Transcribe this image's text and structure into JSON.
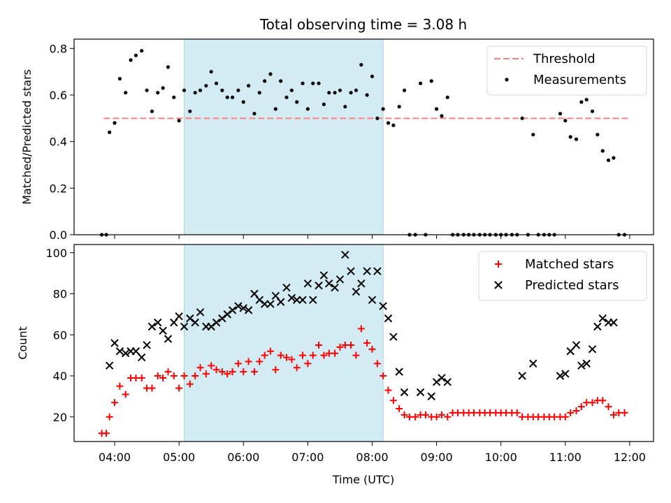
{
  "chart_data": {
    "type": "scatter",
    "title": "Total observing time = 3.08 h",
    "xlabel": "Time (UTC)",
    "x_ticks": [
      "04:00",
      "05:00",
      "06:00",
      "07:00",
      "08:00",
      "09:00",
      "10:00",
      "11:00",
      "12:00"
    ],
    "x_range_hours": [
      3.37,
      12.37
    ],
    "highlight_interval": [
      5.08,
      8.17
    ],
    "colors": {
      "threshold": "#ff7f7f",
      "measurements": "#000000",
      "matched": "#ff0000",
      "predicted": "#000000",
      "highlight": "#d3ebf2"
    },
    "panels": [
      {
        "ylabel": "Matched/Predicted stars",
        "ylim": [
          0,
          0.84
        ],
        "y_ticks": [
          "0.0",
          "0.2",
          "0.4",
          "0.6",
          "0.8"
        ],
        "threshold": 0.5,
        "threshold_x_range": [
          3.83,
          12.0
        ],
        "legend": [
          "Threshold",
          "Measurements"
        ],
        "legend_position": "top-right",
        "measurements": [
          [
            3.8,
            0
          ],
          [
            3.87,
            0
          ],
          [
            3.92,
            0.44
          ],
          [
            4.0,
            0.48
          ],
          [
            4.08,
            0.67
          ],
          [
            4.17,
            0.61
          ],
          [
            4.25,
            0.75
          ],
          [
            4.33,
            0.77
          ],
          [
            4.42,
            0.79
          ],
          [
            4.5,
            0.62
          ],
          [
            4.58,
            0.53
          ],
          [
            4.67,
            0.61
          ],
          [
            4.75,
            0.63
          ],
          [
            4.83,
            0.72
          ],
          [
            4.92,
            0.59
          ],
          [
            5.0,
            0.49
          ],
          [
            5.08,
            0.62
          ],
          [
            5.17,
            0.53
          ],
          [
            5.25,
            0.61
          ],
          [
            5.33,
            0.62
          ],
          [
            5.42,
            0.64
          ],
          [
            5.5,
            0.7
          ],
          [
            5.58,
            0.65
          ],
          [
            5.67,
            0.62
          ],
          [
            5.75,
            0.59
          ],
          [
            5.83,
            0.59
          ],
          [
            5.92,
            0.62
          ],
          [
            6.0,
            0.57
          ],
          [
            6.08,
            0.64
          ],
          [
            6.17,
            0.52
          ],
          [
            6.25,
            0.61
          ],
          [
            6.33,
            0.66
          ],
          [
            6.42,
            0.69
          ],
          [
            6.5,
            0.54
          ],
          [
            6.58,
            0.66
          ],
          [
            6.67,
            0.59
          ],
          [
            6.75,
            0.62
          ],
          [
            6.83,
            0.57
          ],
          [
            6.92,
            0.65
          ],
          [
            7.0,
            0.54
          ],
          [
            7.08,
            0.65
          ],
          [
            7.17,
            0.65
          ],
          [
            7.25,
            0.56
          ],
          [
            7.33,
            0.61
          ],
          [
            7.42,
            0.61
          ],
          [
            7.5,
            0.62
          ],
          [
            7.58,
            0.55
          ],
          [
            7.67,
            0.61
          ],
          [
            7.75,
            0.62
          ],
          [
            7.83,
            0.73
          ],
          [
            7.92,
            0.6
          ],
          [
            8.0,
            0.68
          ],
          [
            8.08,
            0.5
          ],
          [
            8.17,
            0.54
          ],
          [
            8.25,
            0.48
          ],
          [
            8.33,
            0.47
          ],
          [
            8.42,
            0.55
          ],
          [
            8.5,
            0.62
          ],
          [
            8.58,
            0
          ],
          [
            8.67,
            0
          ],
          [
            8.75,
            0.65
          ],
          [
            8.83,
            0
          ],
          [
            8.92,
            0.66
          ],
          [
            9.0,
            0.54
          ],
          [
            9.08,
            0.51
          ],
          [
            9.17,
            0.59
          ],
          [
            9.25,
            0
          ],
          [
            9.33,
            0
          ],
          [
            9.42,
            0
          ],
          [
            9.5,
            0
          ],
          [
            9.58,
            0
          ],
          [
            9.67,
            0
          ],
          [
            9.75,
            0
          ],
          [
            9.83,
            0
          ],
          [
            9.92,
            0
          ],
          [
            10.0,
            0
          ],
          [
            10.08,
            0
          ],
          [
            10.17,
            0
          ],
          [
            10.25,
            0
          ],
          [
            10.33,
            0.5
          ],
          [
            10.42,
            0
          ],
          [
            10.5,
            0.43
          ],
          [
            10.58,
            0
          ],
          [
            10.67,
            0
          ],
          [
            10.75,
            0
          ],
          [
            10.83,
            0
          ],
          [
            10.92,
            0.52
          ],
          [
            11.0,
            0.49
          ],
          [
            11.08,
            0.42
          ],
          [
            11.17,
            0.41
          ],
          [
            11.25,
            0.57
          ],
          [
            11.33,
            0.58
          ],
          [
            11.42,
            0.53
          ],
          [
            11.5,
            0.43
          ],
          [
            11.58,
            0.36
          ],
          [
            11.67,
            0.32
          ],
          [
            11.75,
            0.33
          ],
          [
            11.83,
            0
          ],
          [
            11.92,
            0
          ]
        ]
      },
      {
        "ylabel": "Count",
        "ylim": [
          8,
          104
        ],
        "y_ticks": [
          "20",
          "40",
          "60",
          "80",
          "100"
        ],
        "legend": [
          "Matched stars",
          "Predicted stars"
        ],
        "legend_position": "top-right",
        "matched": [
          [
            3.8,
            12
          ],
          [
            3.87,
            12
          ],
          [
            3.92,
            20
          ],
          [
            4.0,
            27
          ],
          [
            4.08,
            35
          ],
          [
            4.17,
            31
          ],
          [
            4.25,
            39
          ],
          [
            4.33,
            39
          ],
          [
            4.42,
            39
          ],
          [
            4.5,
            34
          ],
          [
            4.58,
            34
          ],
          [
            4.67,
            40
          ],
          [
            4.75,
            39
          ],
          [
            4.83,
            42
          ],
          [
            4.92,
            40
          ],
          [
            5.0,
            34
          ],
          [
            5.08,
            40
          ],
          [
            5.17,
            36
          ],
          [
            5.25,
            40
          ],
          [
            5.33,
            44
          ],
          [
            5.42,
            41
          ],
          [
            5.5,
            45
          ],
          [
            5.58,
            43
          ],
          [
            5.67,
            42
          ],
          [
            5.75,
            41
          ],
          [
            5.83,
            42
          ],
          [
            5.92,
            46
          ],
          [
            6.0,
            42
          ],
          [
            6.08,
            47
          ],
          [
            6.17,
            42
          ],
          [
            6.25,
            47
          ],
          [
            6.33,
            50
          ],
          [
            6.42,
            52
          ],
          [
            6.5,
            43
          ],
          [
            6.58,
            50
          ],
          [
            6.67,
            49
          ],
          [
            6.75,
            48
          ],
          [
            6.83,
            44
          ],
          [
            6.92,
            50
          ],
          [
            7.0,
            46
          ],
          [
            7.08,
            50
          ],
          [
            7.17,
            55
          ],
          [
            7.25,
            50
          ],
          [
            7.33,
            51
          ],
          [
            7.42,
            51
          ],
          [
            7.5,
            54
          ],
          [
            7.58,
            55
          ],
          [
            7.67,
            55
          ],
          [
            7.75,
            50
          ],
          [
            7.83,
            63
          ],
          [
            7.92,
            56
          ],
          [
            8.0,
            53
          ],
          [
            8.08,
            46
          ],
          [
            8.17,
            40
          ],
          [
            8.25,
            33
          ],
          [
            8.33,
            28
          ],
          [
            8.42,
            24
          ],
          [
            8.5,
            21
          ],
          [
            8.58,
            20
          ],
          [
            8.67,
            20
          ],
          [
            8.75,
            21
          ],
          [
            8.83,
            21
          ],
          [
            8.92,
            20
          ],
          [
            9.0,
            20
          ],
          [
            9.08,
            21
          ],
          [
            9.17,
            20
          ],
          [
            9.25,
            22
          ],
          [
            9.33,
            22
          ],
          [
            9.42,
            22
          ],
          [
            9.5,
            22
          ],
          [
            9.58,
            22
          ],
          [
            9.67,
            22
          ],
          [
            9.75,
            22
          ],
          [
            9.83,
            22
          ],
          [
            9.92,
            22
          ],
          [
            10.0,
            22
          ],
          [
            10.08,
            22
          ],
          [
            10.17,
            22
          ],
          [
            10.25,
            22
          ],
          [
            10.33,
            20
          ],
          [
            10.42,
            20
          ],
          [
            10.5,
            20
          ],
          [
            10.58,
            20
          ],
          [
            10.67,
            20
          ],
          [
            10.75,
            20
          ],
          [
            10.83,
            20
          ],
          [
            10.92,
            20
          ],
          [
            11.0,
            20
          ],
          [
            11.08,
            22
          ],
          [
            11.17,
            23
          ],
          [
            11.25,
            25
          ],
          [
            11.33,
            27
          ],
          [
            11.42,
            27
          ],
          [
            11.5,
            28
          ],
          [
            11.58,
            28
          ],
          [
            11.67,
            25
          ],
          [
            11.75,
            21
          ],
          [
            11.83,
            22
          ],
          [
            11.92,
            22
          ]
        ],
        "predicted": [
          [
            3.92,
            45
          ],
          [
            4.0,
            56
          ],
          [
            4.08,
            52
          ],
          [
            4.17,
            51
          ],
          [
            4.25,
            52
          ],
          [
            4.33,
            52
          ],
          [
            4.42,
            49
          ],
          [
            4.5,
            55
          ],
          [
            4.58,
            64
          ],
          [
            4.67,
            66
          ],
          [
            4.75,
            62
          ],
          [
            4.83,
            58
          ],
          [
            4.92,
            66
          ],
          [
            5.0,
            69
          ],
          [
            5.08,
            64
          ],
          [
            5.17,
            68
          ],
          [
            5.25,
            66
          ],
          [
            5.33,
            71
          ],
          [
            5.42,
            64
          ],
          [
            5.5,
            64
          ],
          [
            5.58,
            66
          ],
          [
            5.67,
            68
          ],
          [
            5.75,
            70
          ],
          [
            5.83,
            72
          ],
          [
            5.92,
            74
          ],
          [
            6.0,
            73
          ],
          [
            6.08,
            72
          ],
          [
            6.17,
            80
          ],
          [
            6.25,
            77
          ],
          [
            6.33,
            75
          ],
          [
            6.42,
            75
          ],
          [
            6.5,
            79
          ],
          [
            6.58,
            76
          ],
          [
            6.67,
            83
          ],
          [
            6.75,
            78
          ],
          [
            6.83,
            77
          ],
          [
            6.92,
            77
          ],
          [
            7.0,
            85
          ],
          [
            7.08,
            77
          ],
          [
            7.17,
            84
          ],
          [
            7.25,
            89
          ],
          [
            7.33,
            85
          ],
          [
            7.42,
            83
          ],
          [
            7.5,
            87
          ],
          [
            7.58,
            99
          ],
          [
            7.67,
            91
          ],
          [
            7.75,
            81
          ],
          [
            7.83,
            85
          ],
          [
            7.92,
            91
          ],
          [
            8.0,
            77
          ],
          [
            8.08,
            91
          ],
          [
            8.17,
            74
          ],
          [
            8.25,
            68
          ],
          [
            8.33,
            59
          ],
          [
            8.42,
            42
          ],
          [
            8.5,
            32
          ],
          [
            8.75,
            32
          ],
          [
            8.92,
            30
          ],
          [
            9.0,
            37
          ],
          [
            9.08,
            39
          ],
          [
            9.17,
            37
          ],
          [
            10.33,
            40
          ],
          [
            10.5,
            46
          ],
          [
            10.92,
            40
          ],
          [
            11.0,
            41
          ],
          [
            11.08,
            52
          ],
          [
            11.17,
            55
          ],
          [
            11.25,
            45
          ],
          [
            11.33,
            46
          ],
          [
            11.42,
            53
          ],
          [
            11.5,
            64
          ],
          [
            11.58,
            68
          ],
          [
            11.67,
            66
          ],
          [
            11.75,
            66
          ]
        ]
      }
    ]
  }
}
